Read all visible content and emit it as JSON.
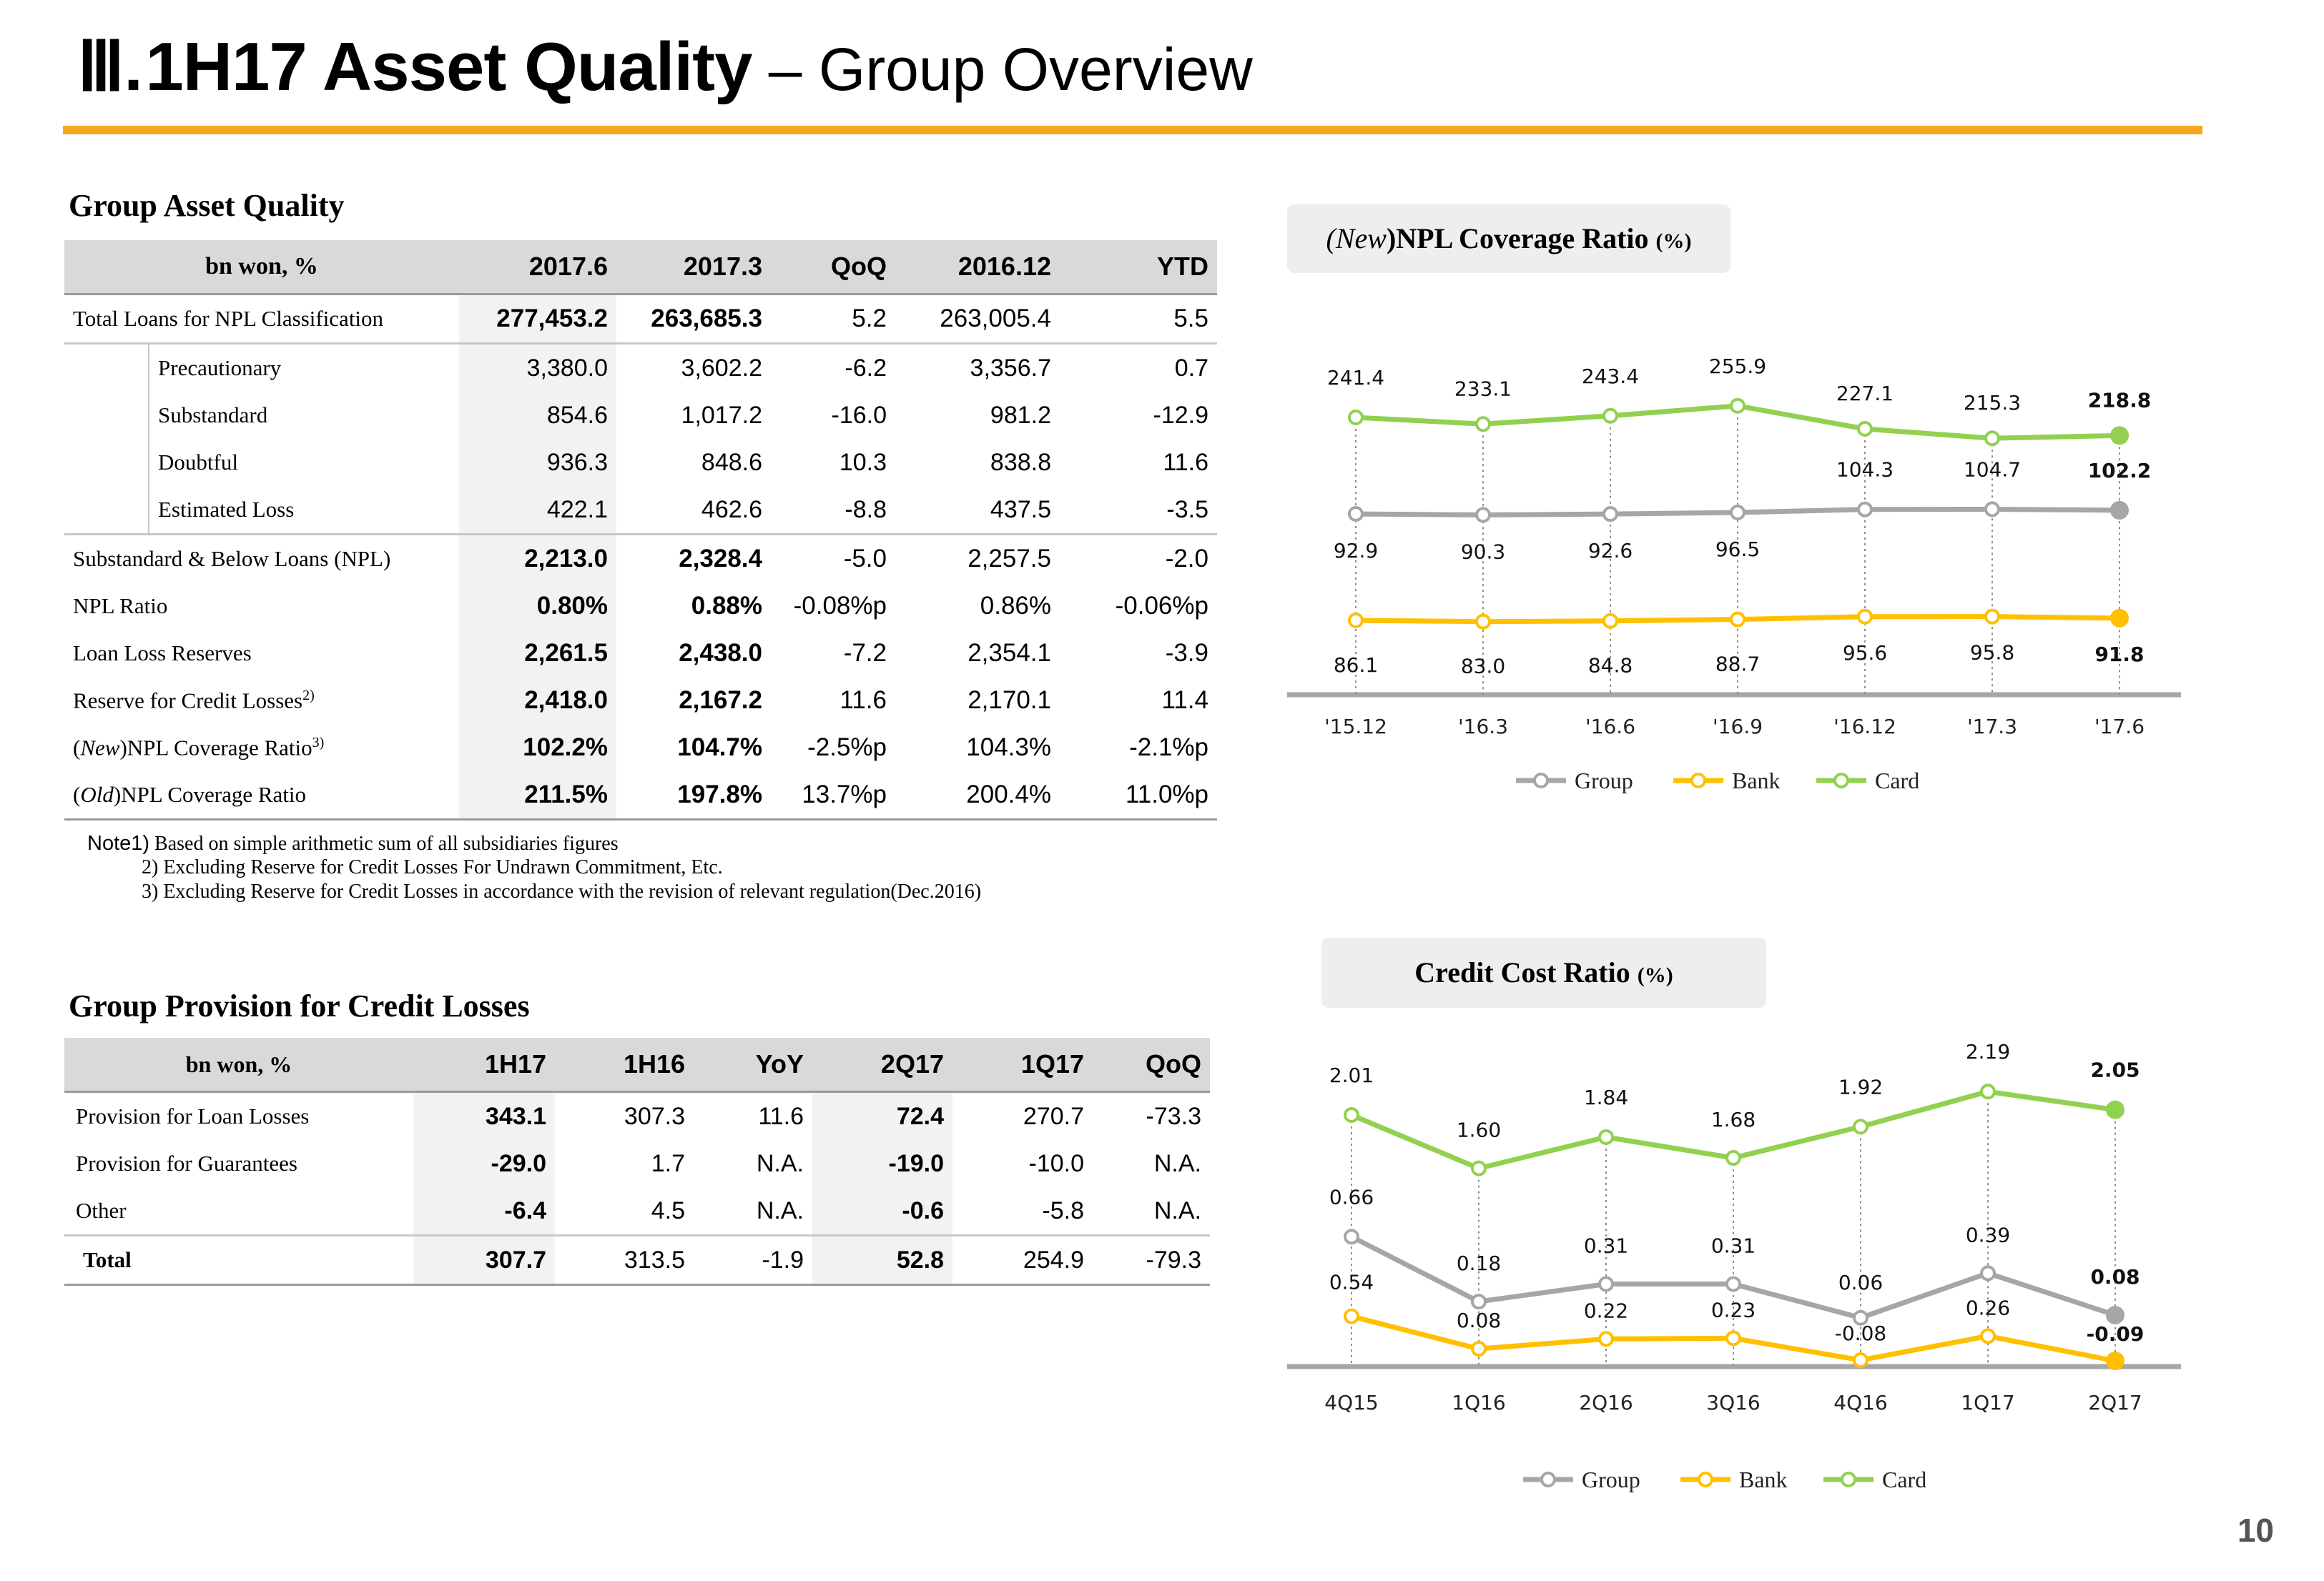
{
  "title": {
    "roman": "Ⅲ.",
    "bold": "1H17 Asset Quality",
    "dash": " – ",
    "light": "Group Overview"
  },
  "asset_quality": {
    "section_title": "Group Asset Quality",
    "headers": [
      "bn won, %",
      "2017.6",
      "2017.3",
      "QoQ",
      "2016.12",
      "YTD"
    ],
    "rows": [
      {
        "label": "Total Loans for NPL Classification",
        "sup": "",
        "values": [
          "277,453.2",
          "263,685.3",
          "5.2",
          "263,005.4",
          "5.5"
        ]
      },
      {
        "label": "Precautionary",
        "sup": "",
        "values": [
          "3,380.0",
          "3,602.2",
          "-6.2",
          "3,356.7",
          "0.7"
        ]
      },
      {
        "label": "Substandard",
        "sup": "",
        "values": [
          "854.6",
          "1,017.2",
          "-16.0",
          "981.2",
          "-12.9"
        ]
      },
      {
        "label": "Doubtful",
        "sup": "",
        "values": [
          "936.3",
          "848.6",
          "10.3",
          "838.8",
          "11.6"
        ]
      },
      {
        "label": "Estimated Loss",
        "sup": "",
        "values": [
          "422.1",
          "462.6",
          "-8.8",
          "437.5",
          "-3.5"
        ]
      },
      {
        "label": "Substandard & Below Loans (NPL)",
        "sup": "",
        "values": [
          "2,213.0",
          "2,328.4",
          "-5.0",
          "2,257.5",
          "-2.0"
        ]
      },
      {
        "label": "NPL Ratio",
        "sup": "",
        "values": [
          "0.80%",
          "0.88%",
          "-0.08%p",
          "0.86%",
          "-0.06%p"
        ]
      },
      {
        "label": "Loan Loss Reserves",
        "sup": "",
        "values": [
          "2,261.5",
          "2,438.0",
          "-7.2",
          "2,354.1",
          "-3.9"
        ]
      },
      {
        "label": "Reserve for Credit Losses",
        "sup": "2)",
        "values": [
          "2,418.0",
          "2,167.2",
          "11.6",
          "2,170.1",
          "11.4"
        ]
      },
      {
        "label_prefix": "(",
        "label_italic": "New",
        "label": ")NPL Coverage Ratio",
        "sup": "3)",
        "values": [
          "102.2%",
          "104.7%",
          "-2.5%p",
          "104.3%",
          "-2.1%p"
        ]
      },
      {
        "label_prefix": "(",
        "label_italic": "Old",
        "label": ")NPL Coverage Ratio",
        "sup": "",
        "values": [
          "211.5%",
          "197.8%",
          "13.7%p",
          "200.4%",
          "11.0%p"
        ]
      }
    ],
    "notes": {
      "prefix": "Note1)",
      "n1": "Based on simple arithmetic sum of all subsidiaries figures",
      "n2": "2) Excluding Reserve for Credit Losses For Undrawn Commitment, Etc.",
      "n3": "3) Excluding Reserve for Credit Losses in accordance with the revision of relevant regulation(Dec.2016)"
    }
  },
  "provision": {
    "section_title": "Group Provision for Credit Losses",
    "headers": [
      "bn won, %",
      "1H17",
      "1H16",
      "YoY",
      "2Q17",
      "1Q17",
      "QoQ"
    ],
    "rows": [
      {
        "label": "Provision for Loan Losses",
        "values": [
          "343.1",
          "307.3",
          "11.6",
          "72.4",
          "270.7",
          "-73.3"
        ]
      },
      {
        "label": "Provision for Guarantees",
        "values": [
          "-29.0",
          "1.7",
          "N.A.",
          "-19.0",
          "-10.0",
          "N.A."
        ]
      },
      {
        "label": "Other",
        "values": [
          "-6.4",
          "4.5",
          "N.A.",
          "-0.6",
          "-5.8",
          "N.A."
        ]
      },
      {
        "label": "Total",
        "values": [
          "307.7",
          "313.5",
          "-1.9",
          "52.8",
          "254.9",
          "-79.3"
        ]
      }
    ]
  },
  "colors": {
    "accent": "#f5a623",
    "group": "#a6a6a6",
    "bank": "#ffc000",
    "card": "#92d050"
  },
  "chart_data": [
    {
      "type": "line",
      "title_prefix": "(",
      "title_italic": "New",
      "title": ")NPL Coverage Ratio",
      "unit": "(%)",
      "categories": [
        "'15.12",
        "'16.3",
        "'16.6",
        "'16.9",
        "'16.12",
        "'17.3",
        "'17.6"
      ],
      "series": [
        {
          "name": "Group",
          "values": [
            92.9,
            90.3,
            92.6,
            96.5,
            104.3,
            104.7,
            102.2
          ],
          "labels": [
            "92.9",
            "90.3",
            "92.6",
            "96.5",
            "104.3",
            "104.7",
            "102.2"
          ]
        },
        {
          "name": "Bank",
          "values": [
            86.1,
            83.0,
            84.8,
            88.7,
            95.6,
            95.8,
            91.8
          ],
          "labels": [
            "86.1",
            "83.0",
            "84.8",
            "88.7",
            "95.6",
            "95.8",
            "91.8"
          ]
        },
        {
          "name": "Card",
          "values": [
            241.4,
            233.1,
            243.4,
            255.9,
            227.1,
            215.3,
            218.8
          ],
          "labels": [
            "241.4",
            "233.1",
            "243.4",
            "255.9",
            "227.1",
            "215.3",
            "218.8"
          ]
        }
      ],
      "legend": "bottom"
    },
    {
      "type": "line",
      "title": "Credit Cost Ratio",
      "unit": "(%)",
      "categories": [
        "4Q15",
        "1Q16",
        "2Q16",
        "3Q16",
        "4Q16",
        "1Q17",
        "2Q17"
      ],
      "series": [
        {
          "name": "Group",
          "values": [
            0.66,
            0.18,
            0.31,
            0.31,
            0.06,
            0.39,
            0.08
          ],
          "labels": [
            "0.66",
            "0.18",
            "0.31",
            "0.31",
            "0.06",
            "0.39",
            "0.08"
          ]
        },
        {
          "name": "Bank",
          "values": [
            0.54,
            0.08,
            0.22,
            0.23,
            -0.08,
            0.26,
            -0.09
          ],
          "labels": [
            "0.54",
            "0.08",
            "0.22",
            "0.23",
            "-0.08",
            "0.26",
            "-0.09"
          ]
        },
        {
          "name": "Card",
          "values": [
            2.01,
            1.6,
            1.84,
            1.68,
            1.92,
            2.19,
            2.05
          ],
          "labels": [
            "2.01",
            "1.60",
            "1.84",
            "1.68",
            "1.92",
            "2.19",
            "2.05"
          ]
        }
      ],
      "legend": "bottom"
    }
  ],
  "page_number": "10"
}
